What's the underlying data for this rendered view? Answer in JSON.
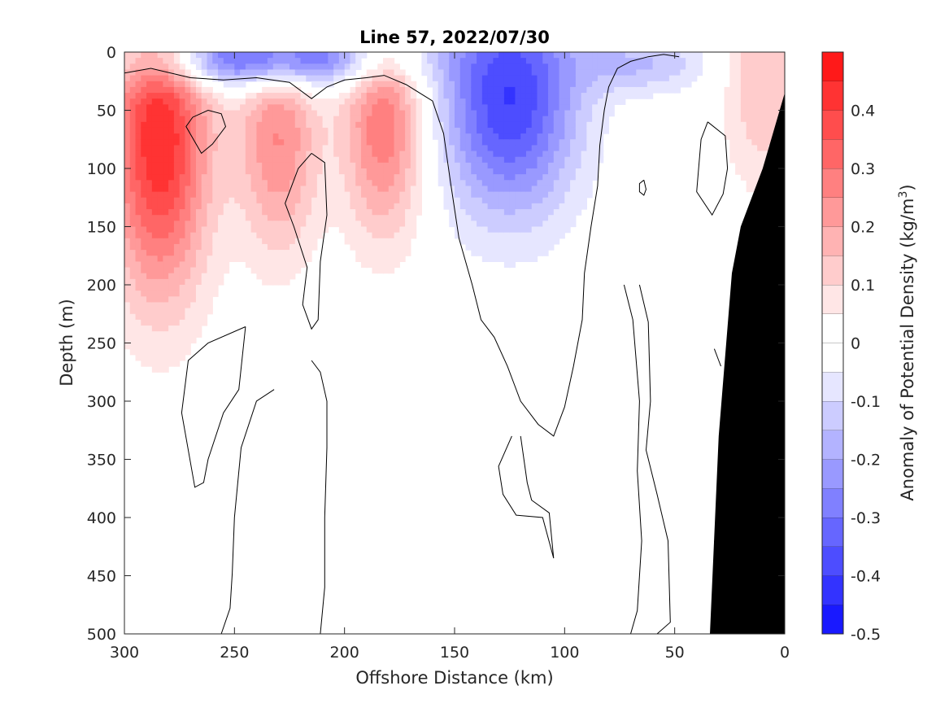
{
  "chart_data": {
    "type": "heatmap",
    "subtype": "filled-contour section",
    "title": "Line 57, 2022/07/30",
    "xlabel": "Offshore Distance (km)",
    "ylabel": "Depth (m)",
    "colorbar_label": "Anomaly of Potential Density (kg/m",
    "colorbar_label_superscript": "3",
    "colorbar_label_close": ")",
    "x_ticks": [
      300,
      250,
      200,
      150,
      100,
      50,
      0
    ],
    "y_ticks": [
      0,
      50,
      100,
      150,
      200,
      250,
      300,
      350,
      400,
      450,
      500
    ],
    "xlim": [
      300,
      0
    ],
    "ylim": [
      0,
      500
    ],
    "x_reversed": true,
    "y_reversed": true,
    "colorbar_ticks": [
      {
        "value": 0.4,
        "label": "0.4"
      },
      {
        "value": 0.3,
        "label": "0.3"
      },
      {
        "value": 0.2,
        "label": "0.2"
      },
      {
        "value": 0.1,
        "label": "0.1"
      },
      {
        "value": 0,
        "label": "0"
      },
      {
        "value": -0.1,
        "label": "-0.1"
      },
      {
        "value": -0.2,
        "label": "-0.2"
      },
      {
        "value": -0.3,
        "label": "-0.3"
      },
      {
        "value": -0.4,
        "label": "-0.4"
      },
      {
        "value": -0.5,
        "label": "-0.5"
      }
    ],
    "colorbar_range": [
      -0.5,
      0.5
    ],
    "contour_levels": [
      -0.5,
      -0.45,
      -0.4,
      -0.35,
      -0.3,
      -0.25,
      -0.2,
      -0.15,
      -0.1,
      -0.05,
      0,
      0.05,
      0.1,
      0.15,
      0.2,
      0.25,
      0.3,
      0.35,
      0.4,
      0.45,
      0.5
    ],
    "colors": {
      "positive": "#ff0000",
      "negative": "#0000ff",
      "zero": "#ffffff",
      "bathymetry": "#000000",
      "contour_line": "#000000"
    },
    "features": [
      {
        "type": "positive",
        "x_center_km": 284,
        "depth_center_m": 75,
        "peak": 0.45
      },
      {
        "type": "positive",
        "x_center_km": 230,
        "depth_center_m": 75,
        "peak": 0.25
      },
      {
        "type": "positive",
        "x_center_km": 182,
        "depth_center_m": 60,
        "peak": 0.3
      },
      {
        "type": "positive",
        "x_center_km": 10,
        "depth_center_m": 20,
        "peak": 0.15
      },
      {
        "type": "negative",
        "x_center_km": 235,
        "depth_center_m": 5,
        "peak": -0.4
      },
      {
        "type": "negative",
        "x_center_km": 125,
        "depth_center_m": 40,
        "peak": -0.4
      },
      {
        "type": "negative",
        "x_center_km": 65,
        "depth_center_m": 10,
        "peak": -0.15
      }
    ],
    "bathymetry_km_vs_depth_m": [
      [
        0,
        35
      ],
      [
        10,
        100
      ],
      [
        20,
        150
      ],
      [
        24,
        190
      ],
      [
        30,
        330
      ],
      [
        34,
        500
      ]
    ]
  }
}
